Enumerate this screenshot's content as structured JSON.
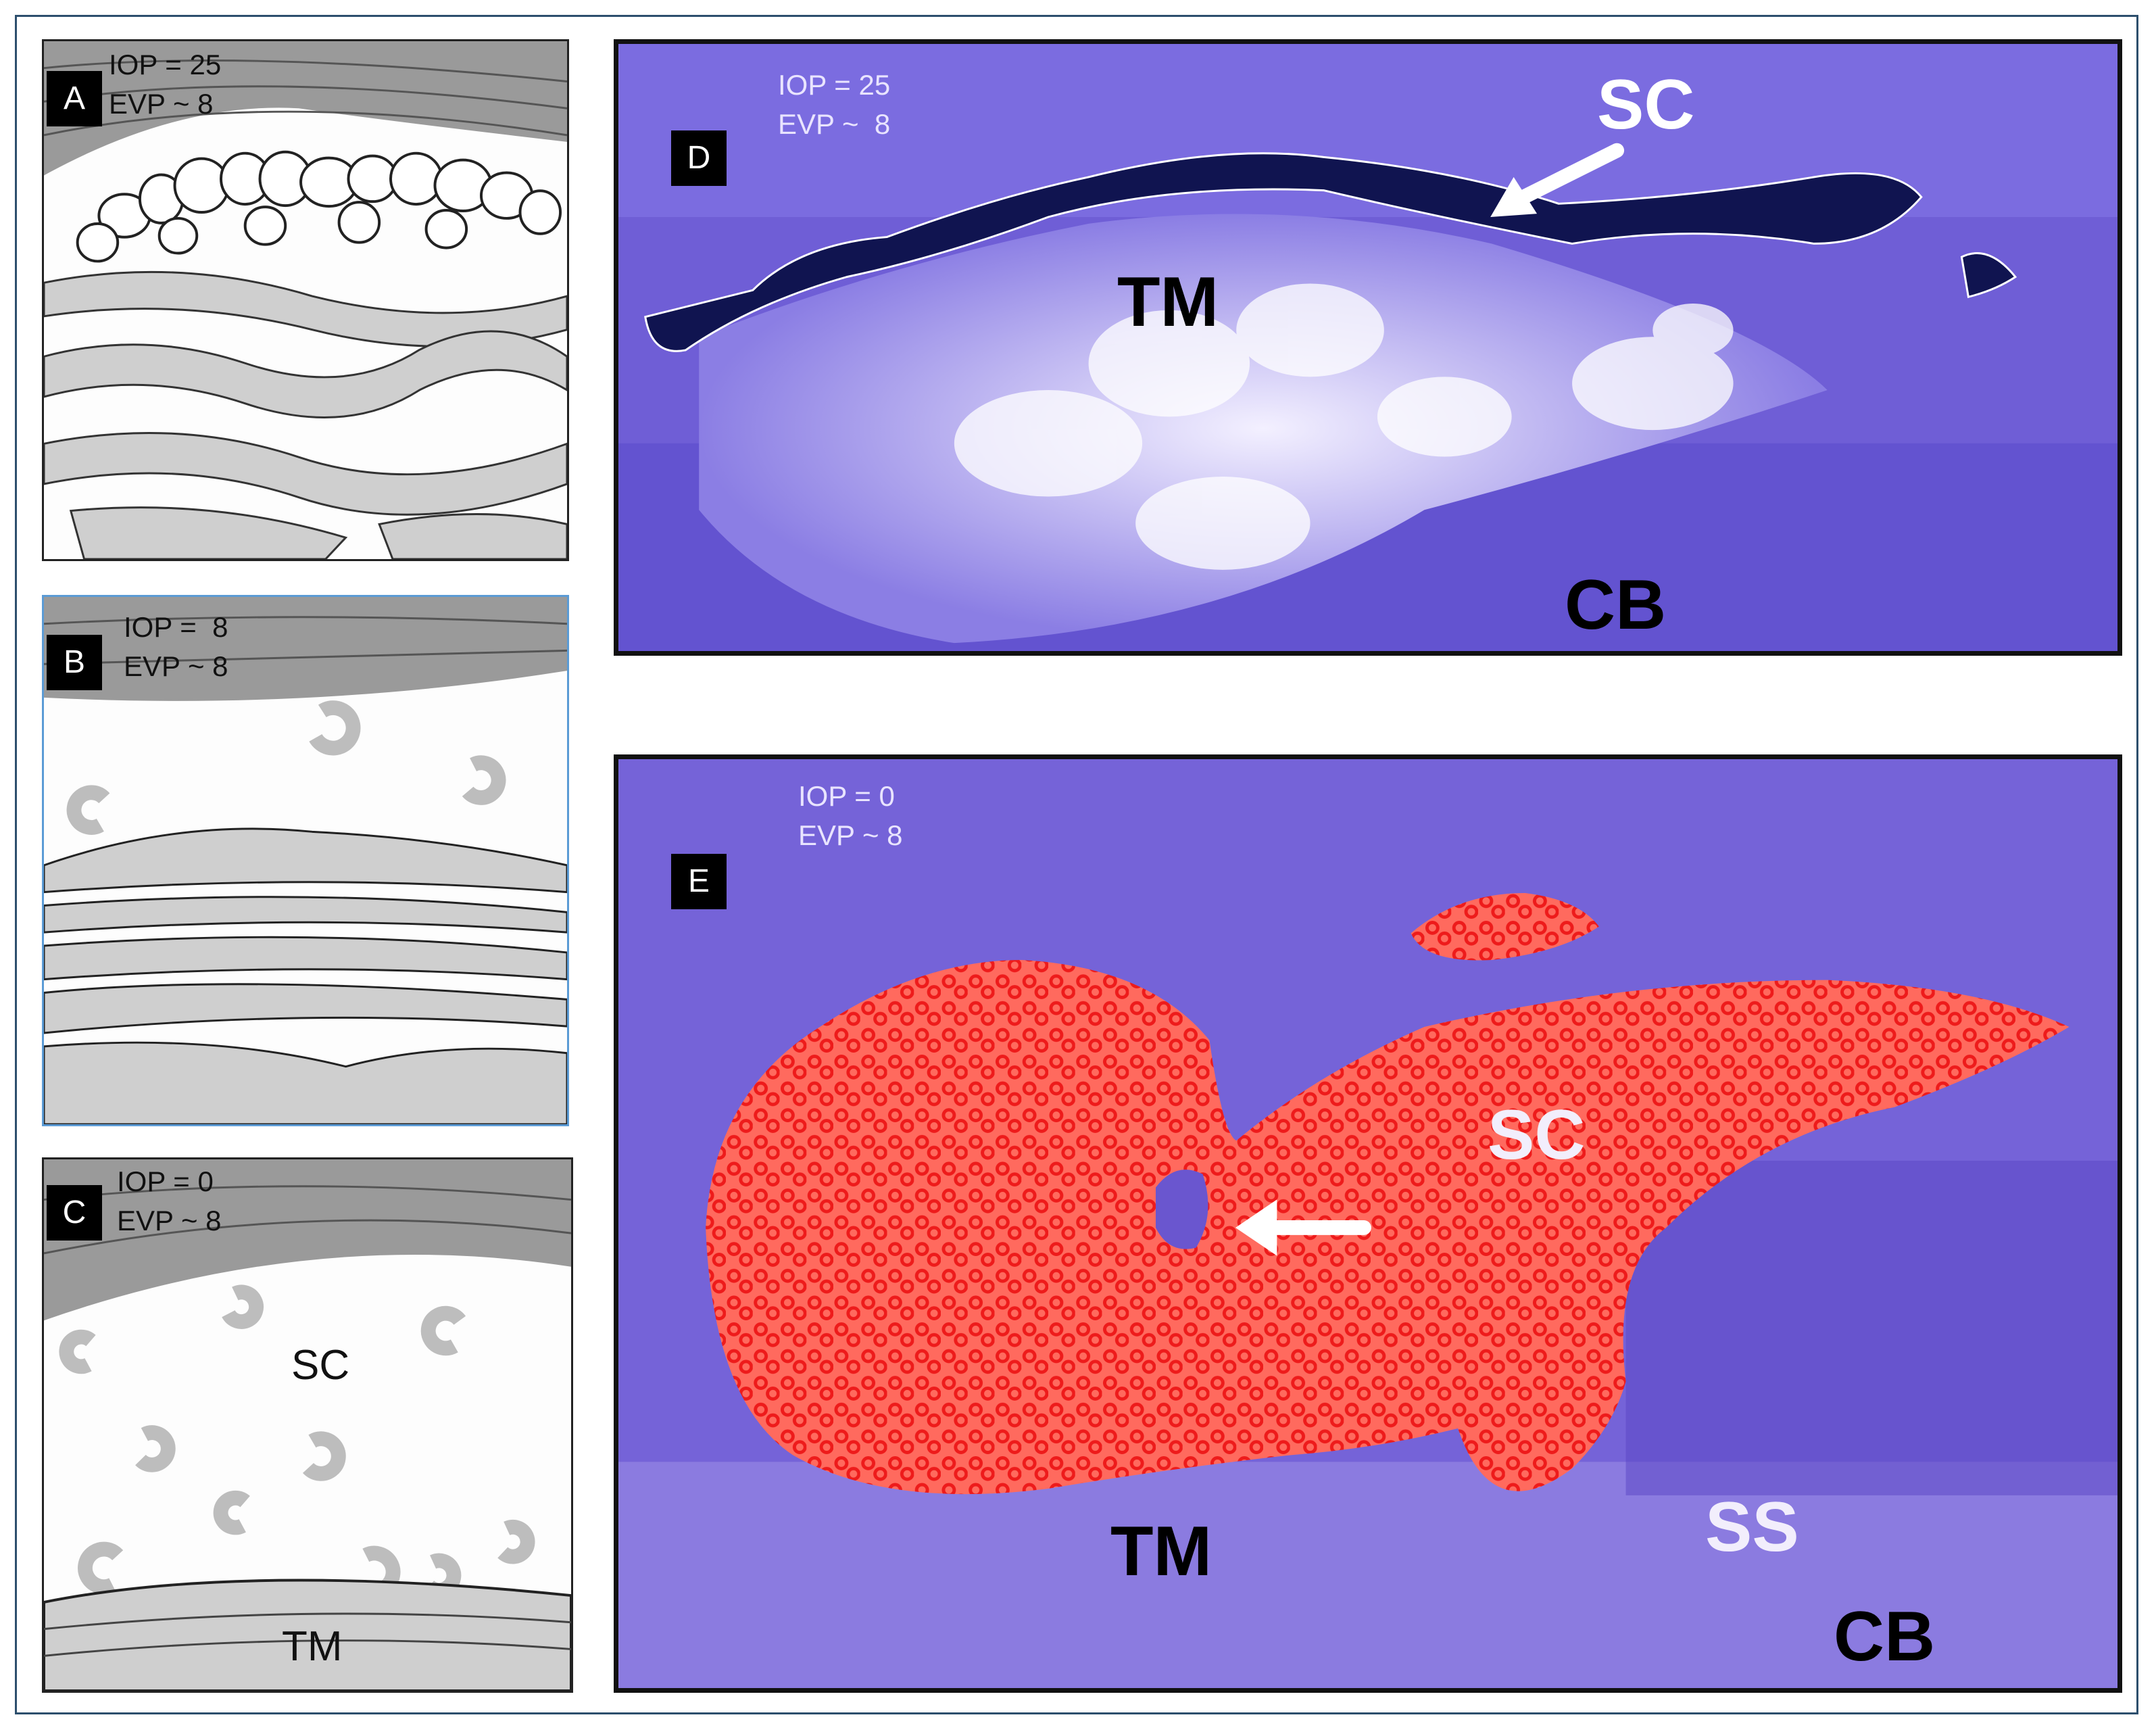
{
  "panels": {
    "a": {
      "badge": "A",
      "iop": "IOP = 25",
      "evp": "EVP ~ 8"
    },
    "b": {
      "badge": "B",
      "iop": "IOP =  8",
      "evp": "EVP ~ 8"
    },
    "c": {
      "badge": "C",
      "iop": "IOP = 0",
      "evp": "EVP ~ 8",
      "sc": "SC",
      "tm": "TM"
    },
    "d": {
      "badge": "D",
      "iop": "IOP = 25",
      "evp": "EVP ~  8",
      "sc": "SC",
      "tm": "TM",
      "cb": "CB"
    },
    "e": {
      "badge": "E",
      "iop": "IOP = 0",
      "evp": "EVP ~ 8",
      "sc": "SC",
      "tm": "TM",
      "ss": "SS",
      "cb": "CB"
    }
  },
  "colors": {
    "frame": "#2d4f6d",
    "tissue_purple": "#6e5ad0",
    "canal_dark": "#101450",
    "canal_red": "#ff6a5e",
    "blood_red": "#ee1b1b",
    "drawing_grey": "#cfcfcf"
  },
  "icons": [
    "arrow-icon"
  ]
}
